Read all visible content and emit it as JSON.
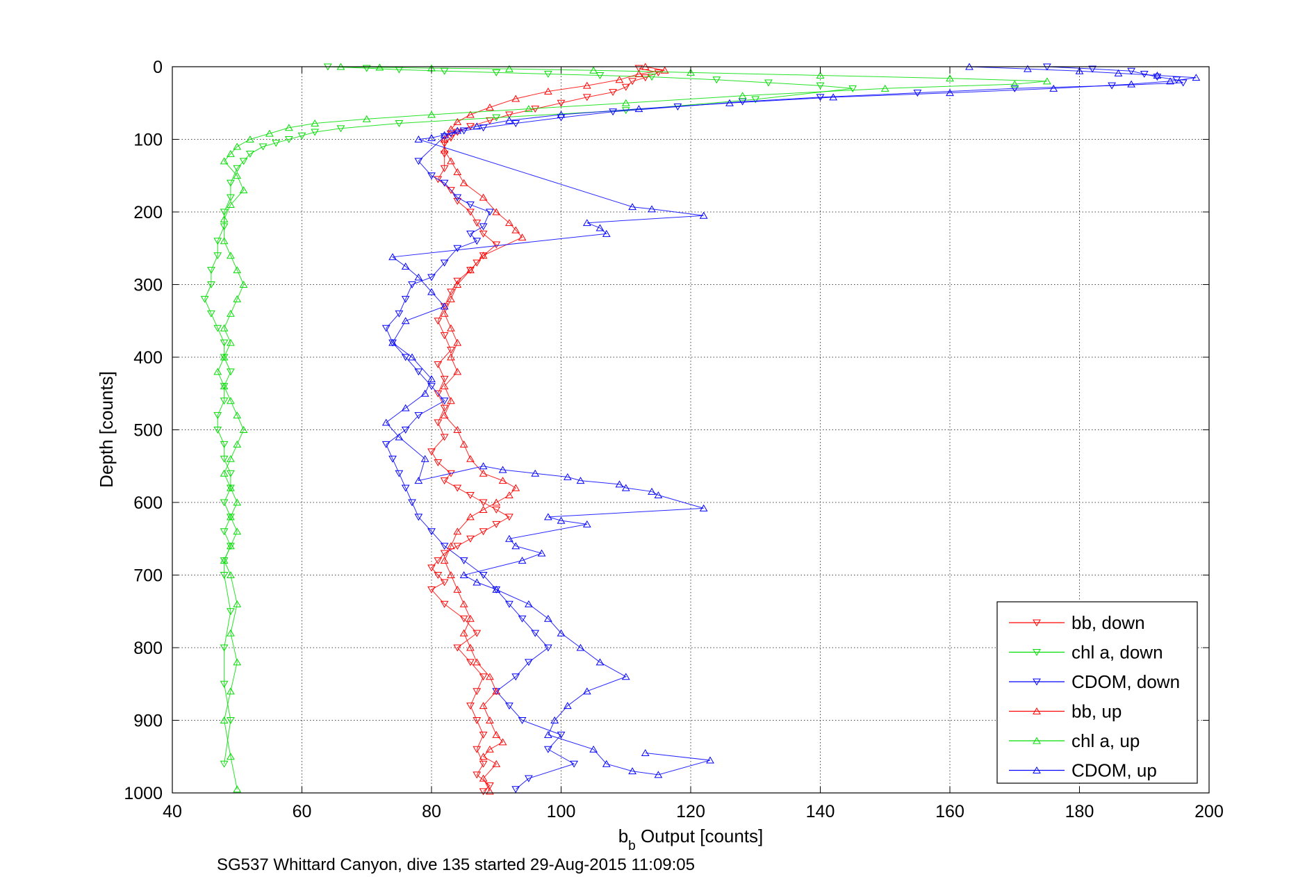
{
  "chart_data": {
    "type": "scatter",
    "xlabel": {
      "main": "b",
      "sub": "b",
      "rest": " Output [counts]"
    },
    "ylabel": "Depth [counts]",
    "caption": "SG537 Whittard Canyon, dive 135 started 29-Aug-2015 11:09:05",
    "xlim": [
      40,
      200
    ],
    "ylim": [
      0,
      1000
    ],
    "y_reversed": true,
    "x_ticks": [
      "40",
      "60",
      "80",
      "100",
      "120",
      "140",
      "160",
      "180",
      "200"
    ],
    "y_ticks": [
      "0",
      "100",
      "200",
      "300",
      "400",
      "500",
      "600",
      "700",
      "800",
      "900",
      "1000"
    ],
    "grid": true,
    "legend_position": "bottom-right",
    "series": [
      {
        "name": "bb, down",
        "color": "#ff0000",
        "marker": "triangle-down",
        "x": [
          112,
          115,
          113,
          111,
          110,
          108,
          104,
          100,
          96,
          92,
          89,
          86,
          84,
          83,
          82,
          82,
          82,
          81,
          83,
          84,
          86,
          87,
          88,
          90,
          88,
          87,
          86,
          84,
          83,
          82,
          81,
          82,
          83,
          81,
          82,
          81,
          82,
          81,
          82,
          80,
          81,
          83,
          82,
          84,
          86,
          88,
          90,
          92,
          90,
          88,
          86,
          84,
          82,
          81,
          80,
          81,
          82,
          80,
          82,
          85,
          87,
          84,
          86,
          88,
          87,
          86,
          87,
          88,
          87,
          88,
          87,
          89,
          88
        ],
        "y": [
          2,
          8,
          15,
          20,
          28,
          35,
          42,
          50,
          58,
          66,
          74,
          82,
          90,
          98,
          106,
          120,
          140,
          155,
          170,
          185,
          200,
          215,
          230,
          245,
          260,
          270,
          280,
          295,
          310,
          330,
          350,
          370,
          390,
          410,
          430,
          450,
          470,
          490,
          510,
          530,
          545,
          560,
          570,
          580,
          590,
          600,
          610,
          620,
          630,
          640,
          650,
          660,
          670,
          680,
          690,
          700,
          710,
          720,
          740,
          760,
          780,
          800,
          820,
          840,
          860,
          880,
          900,
          920,
          940,
          960,
          975,
          990,
          998
        ]
      },
      {
        "name": "chl a, down",
        "color": "#00dd00",
        "marker": "triangle-down",
        "x": [
          64,
          70,
          75,
          82,
          90,
          98,
          106,
          114,
          124,
          132,
          140,
          145,
          130,
          110,
          90,
          75,
          66,
          62,
          60,
          58,
          56,
          54,
          52,
          51,
          50,
          49,
          49,
          48,
          48,
          47,
          47,
          46,
          46,
          45,
          46,
          47,
          48,
          48,
          49,
          48,
          48,
          47,
          47,
          48,
          48,
          49,
          49,
          48,
          49,
          48,
          49,
          48,
          48,
          49,
          48,
          48,
          49,
          48
        ],
        "y": [
          0,
          2,
          4,
          6,
          8,
          10,
          12,
          14,
          18,
          22,
          26,
          30,
          45,
          60,
          70,
          78,
          85,
          90,
          95,
          100,
          105,
          110,
          120,
          130,
          140,
          160,
          180,
          200,
          220,
          240,
          260,
          280,
          300,
          320,
          340,
          360,
          380,
          400,
          420,
          440,
          460,
          480,
          500,
          520,
          540,
          560,
          580,
          600,
          620,
          640,
          660,
          680,
          700,
          750,
          800,
          850,
          900,
          960
        ]
      },
      {
        "name": "CDOM, down",
        "color": "#0000ff",
        "marker": "triangle-down",
        "x": [
          175,
          182,
          188,
          190,
          192,
          195,
          196,
          185,
          170,
          155,
          140,
          128,
          118,
          108,
          100,
          93,
          88,
          85,
          83,
          82,
          78,
          80,
          82,
          84,
          86,
          89,
          88,
          86,
          87,
          84,
          82,
          80,
          77,
          76,
          75,
          73,
          74,
          76,
          78,
          80,
          82,
          78,
          76,
          73,
          74,
          75,
          76,
          77,
          78,
          80,
          82,
          85,
          88,
          90,
          92,
          94,
          96,
          98,
          95,
          93,
          90,
          92,
          94,
          100,
          98,
          102,
          95,
          93
        ],
        "y": [
          0,
          3,
          6,
          10,
          14,
          18,
          22,
          26,
          30,
          36,
          42,
          48,
          55,
          62,
          70,
          78,
          84,
          88,
          92,
          96,
          130,
          150,
          160,
          180,
          190,
          200,
          220,
          230,
          240,
          250,
          270,
          290,
          300,
          320,
          340,
          360,
          380,
          400,
          420,
          440,
          460,
          480,
          500,
          520,
          540,
          560,
          580,
          600,
          620,
          640,
          660,
          680,
          700,
          720,
          740,
          760,
          780,
          800,
          820,
          840,
          860,
          880,
          900,
          920,
          940,
          960,
          980,
          995
        ]
      },
      {
        "name": "bb, up",
        "color": "#ff0000",
        "marker": "triangle-up",
        "x": [
          113,
          116,
          112,
          109,
          104,
          98,
          93,
          89,
          86,
          84,
          83,
          82,
          82,
          83,
          84,
          85,
          88,
          90,
          92,
          93,
          94,
          88,
          86,
          84,
          83,
          82,
          83,
          84,
          83,
          84,
          82,
          83,
          82,
          84,
          85,
          86,
          88,
          91,
          93,
          92,
          90,
          88,
          86,
          84,
          83,
          82,
          83,
          84,
          85,
          86,
          85,
          86,
          87,
          89,
          90,
          88,
          89,
          90,
          91,
          89,
          88,
          90,
          88,
          89
        ],
        "y": [
          0,
          5,
          10,
          18,
          26,
          34,
          44,
          56,
          66,
          76,
          86,
          100,
          115,
          130,
          145,
          160,
          180,
          200,
          215,
          225,
          235,
          260,
          280,
          300,
          320,
          340,
          360,
          380,
          400,
          420,
          440,
          460,
          480,
          500,
          520,
          540,
          560,
          570,
          580,
          590,
          600,
          610,
          620,
          640,
          660,
          680,
          700,
          720,
          740,
          760,
          780,
          800,
          820,
          840,
          860,
          880,
          900,
          920,
          930,
          940,
          950,
          960,
          980,
          998
        ]
      },
      {
        "name": "chl a, up",
        "color": "#00dd00",
        "marker": "triangle-up",
        "x": [
          66,
          72,
          80,
          92,
          105,
          120,
          140,
          160,
          175,
          170,
          150,
          128,
          110,
          95,
          80,
          70,
          62,
          58,
          55,
          52,
          50,
          49,
          48,
          50,
          51,
          49,
          48,
          48,
          49,
          50,
          51,
          50,
          49,
          48,
          49,
          48,
          47,
          48,
          49,
          50,
          51,
          50,
          49,
          48,
          49,
          50,
          49,
          50,
          49,
          48,
          49,
          50,
          49,
          50,
          49,
          48,
          49,
          50
        ],
        "y": [
          0,
          1,
          2,
          3,
          5,
          8,
          12,
          16,
          20,
          24,
          30,
          40,
          50,
          58,
          66,
          72,
          78,
          84,
          92,
          100,
          110,
          120,
          130,
          150,
          170,
          190,
          210,
          240,
          260,
          280,
          300,
          320,
          340,
          360,
          380,
          400,
          420,
          440,
          460,
          480,
          500,
          520,
          540,
          560,
          580,
          600,
          620,
          640,
          660,
          680,
          700,
          740,
          780,
          820,
          860,
          900,
          950,
          995
        ]
      },
      {
        "name": "CDOM, up",
        "color": "#0000ff",
        "marker": "triangle-up",
        "x": [
          163,
          172,
          180,
          186,
          192,
          198,
          194,
          188,
          176,
          160,
          142,
          126,
          112,
          100,
          92,
          87,
          84,
          82,
          80,
          78,
          111,
          114,
          122,
          104,
          106,
          107,
          74,
          76,
          78,
          80,
          82,
          76,
          74,
          77,
          80,
          79,
          76,
          73,
          75,
          79,
          78,
          88,
          91,
          96,
          101,
          103,
          109,
          110,
          114,
          115,
          122,
          98,
          100,
          104,
          92,
          93,
          97,
          94,
          85,
          87,
          90,
          95,
          98,
          100,
          103,
          106,
          110,
          104,
          101,
          99,
          98,
          105,
          107,
          111,
          115,
          123,
          113
        ],
        "y": [
          0,
          3,
          6,
          9,
          12,
          15,
          20,
          24,
          30,
          36,
          42,
          50,
          58,
          66,
          74,
          82,
          88,
          94,
          98,
          100,
          193,
          196,
          205,
          215,
          222,
          230,
          262,
          275,
          290,
          310,
          330,
          350,
          380,
          400,
          430,
          450,
          470,
          490,
          510,
          540,
          570,
          550,
          555,
          560,
          565,
          570,
          575,
          580,
          585,
          590,
          608,
          620,
          625,
          630,
          650,
          660,
          670,
          680,
          700,
          710,
          720,
          740,
          760,
          780,
          800,
          820,
          840,
          860,
          880,
          900,
          920,
          940,
          960,
          970,
          975,
          955,
          945
        ]
      }
    ]
  }
}
